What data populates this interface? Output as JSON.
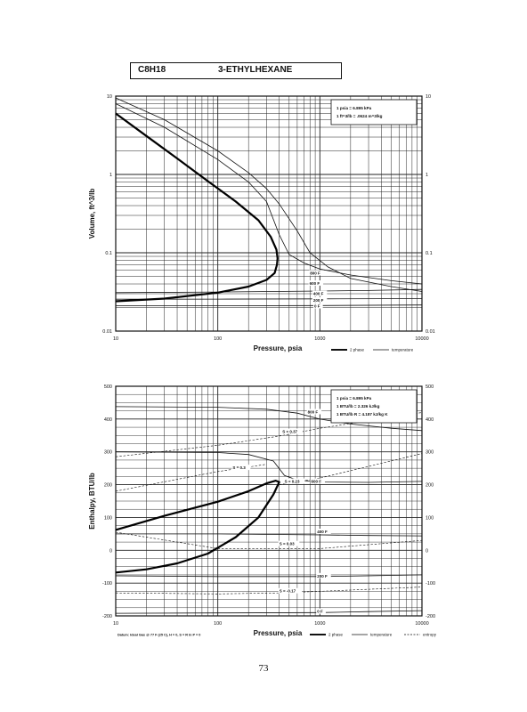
{
  "header": {
    "formula": "C8H18",
    "name": "3-ETHYLHEXANE"
  },
  "page_number": "73",
  "chart_data": [
    {
      "type": "line",
      "id": "volume",
      "xlabel": "Pressure, psia",
      "ylabel": "Volume, ft^3/lb",
      "xscale": "log",
      "yscale": "log",
      "xlim": [
        10,
        10000
      ],
      "ylim": [
        0.01,
        10
      ],
      "x_ticks": [
        "10",
        "100",
        "1000",
        "10000"
      ],
      "y_ticks_left": [
        "0.01",
        "0.1",
        "1",
        "10"
      ],
      "y_ticks_right": [
        "0.01",
        "0.1",
        "1",
        "10"
      ],
      "y_tick_values": [
        0.01,
        0.1,
        1,
        10
      ],
      "conversion_box": {
        "lines": [
          "1 psia = 6.895 kPa",
          "1 ft^3/lb = .0624 m^3/kg"
        ]
      },
      "legend": {
        "items": [
          "2 phase",
          "temperature"
        ]
      },
      "two_phase": [
        [
          10,
          0.024
        ],
        [
          30,
          0.026
        ],
        [
          100,
          0.031
        ],
        [
          200,
          0.037
        ],
        [
          300,
          0.045
        ],
        [
          360,
          0.055
        ],
        [
          380,
          0.07
        ],
        [
          385,
          0.085
        ],
        [
          375,
          0.11
        ],
        [
          330,
          0.16
        ],
        [
          250,
          0.26
        ],
        [
          150,
          0.45
        ],
        [
          80,
          0.82
        ],
        [
          40,
          1.6
        ],
        [
          20,
          3.1
        ],
        [
          10,
          6.0
        ]
      ],
      "isotherms": [
        {
          "label": "800 F",
          "points": [
            [
              10,
              9.5
            ],
            [
              30,
              5.0
            ],
            [
              100,
              2.0
            ],
            [
              200,
              1.05
            ],
            [
              300,
              0.66
            ],
            [
              400,
              0.42
            ],
            [
              600,
              0.19
            ],
            [
              800,
              0.1
            ],
            [
              1200,
              0.066
            ],
            [
              2000,
              0.047
            ],
            [
              5000,
              0.037
            ],
            [
              10000,
              0.032
            ]
          ]
        },
        {
          "label": "600 F",
          "points": [
            [
              10,
              8.0
            ],
            [
              30,
              4.0
            ],
            [
              100,
              1.55
            ],
            [
              200,
              0.8
            ],
            [
              300,
              0.45
            ],
            [
              400,
              0.17
            ],
            [
              500,
              0.095
            ],
            [
              700,
              0.074
            ],
            [
              1000,
              0.062
            ],
            [
              2000,
              0.052
            ],
            [
              5000,
              0.044
            ],
            [
              10000,
              0.04
            ]
          ]
        },
        {
          "label": "400 F",
          "points": [
            [
              10,
              0.031
            ],
            [
              100,
              0.0315
            ],
            [
              1000,
              0.0325
            ],
            [
              3000,
              0.033
            ],
            [
              10000,
              0.034
            ]
          ]
        },
        {
          "label": "200 F",
          "points": [
            [
              10,
              0.0255
            ],
            [
              100,
              0.0256
            ],
            [
              1000,
              0.0258
            ],
            [
              10000,
              0.026
            ]
          ]
        },
        {
          "label": "0 F",
          "points": [
            [
              10,
              0.021
            ],
            [
              100,
              0.0211
            ],
            [
              1000,
              0.0212
            ],
            [
              10000,
              0.0215
            ]
          ]
        }
      ]
    },
    {
      "type": "line",
      "id": "enthalpy",
      "xlabel": "Pressure, psia",
      "ylabel": "Enthalpy, BTU/lb",
      "xscale": "log",
      "yscale": "linear",
      "xlim": [
        10,
        10000
      ],
      "ylim": [
        -200,
        500
      ],
      "x_ticks": [
        "10",
        "100",
        "1000",
        "10000"
      ],
      "y_ticks_left": [
        "-200",
        "-100",
        "0",
        "100",
        "200",
        "300",
        "400",
        "500"
      ],
      "y_ticks_right": [
        "-200",
        "-100",
        "0",
        "100",
        "200",
        "300",
        "400",
        "500"
      ],
      "y_tick_values": [
        -200,
        -100,
        0,
        100,
        200,
        300,
        400,
        500
      ],
      "conversion_box": {
        "lines": [
          "1 psia = 6.895 kPa",
          "1 BTU/lb = 2.326 kJ/kg",
          "1 BTU/lb R = 4.187 kJ/kg K"
        ]
      },
      "legend": {
        "items": [
          "2 phase",
          "temperature",
          "entropy"
        ]
      },
      "datum_text": "Datum: Ideal Gas @ 77 F (25 C), H = 0, S = R ln P = 0",
      "two_phase": [
        [
          10,
          62
        ],
        [
          30,
          105
        ],
        [
          100,
          148
        ],
        [
          200,
          180
        ],
        [
          300,
          204
        ],
        [
          370,
          212
        ],
        [
          400,
          208
        ],
        [
          350,
          170
        ],
        [
          250,
          100
        ],
        [
          150,
          40
        ],
        [
          80,
          -10
        ],
        [
          40,
          -40
        ],
        [
          20,
          -58
        ],
        [
          10,
          -68
        ]
      ],
      "isotherms": [
        {
          "label": "800 F",
          "points": [
            [
              10,
              438
            ],
            [
              100,
              436
            ],
            [
              300,
              430
            ],
            [
              600,
              418
            ],
            [
              1000,
              400
            ],
            [
              2000,
              385
            ],
            [
              5000,
              372
            ],
            [
              10000,
              365
            ]
          ]
        },
        {
          "label": "600 F",
          "points": [
            [
              10,
              300
            ],
            [
              100,
              298
            ],
            [
              200,
              292
            ],
            [
              350,
              272
            ],
            [
              450,
              228
            ],
            [
              600,
              214
            ],
            [
              1000,
              208
            ],
            [
              3000,
              207
            ],
            [
              10000,
              210
            ]
          ]
        },
        {
          "label": "400 F",
          "points": [
            [
              10,
              50
            ],
            [
              100,
              50
            ],
            [
              1000,
              47
            ],
            [
              3000,
              45
            ],
            [
              10000,
              44
            ]
          ]
        },
        {
          "label": "200 F",
          "points": [
            [
              10,
              -78
            ],
            [
              100,
              -80
            ],
            [
              1000,
              -80
            ],
            [
              3000,
              -78
            ],
            [
              10000,
              -75
            ]
          ]
        },
        {
          "label": "0 F",
          "points": [
            [
              10,
              -192
            ],
            [
              100,
              -191
            ],
            [
              1000,
              -190
            ],
            [
              3000,
              -187
            ],
            [
              10000,
              -184
            ]
          ]
        }
      ],
      "isentropes": [
        {
          "label": "S = 0.37",
          "points": [
            [
              10,
              285
            ],
            [
              100,
              320
            ],
            [
              400,
              348
            ],
            [
              1000,
              372
            ],
            [
              3000,
              395
            ],
            [
              10000,
              420
            ]
          ]
        },
        {
          "label": "S = 0.3",
          "points": [
            [
              10,
              180
            ],
            [
              100,
              240
            ],
            [
              300,
              262
            ]
          ]
        },
        {
          "label": "S = 0.23",
          "points": [
            [
              400,
              200
            ],
            [
              1000,
              220
            ],
            [
              10000,
              295
            ]
          ]
        },
        {
          "label": "S = 0.03",
          "points": [
            [
              10,
              55
            ],
            [
              100,
              5
            ],
            [
              500,
              5
            ],
            [
              1000,
              5
            ],
            [
              10000,
              30
            ]
          ]
        },
        {
          "label": "S = -0.17",
          "points": [
            [
              10,
              -130
            ],
            [
              100,
              -133
            ],
            [
              400,
              -130
            ],
            [
              1000,
              -125
            ],
            [
              10000,
              -112
            ]
          ]
        }
      ]
    }
  ]
}
